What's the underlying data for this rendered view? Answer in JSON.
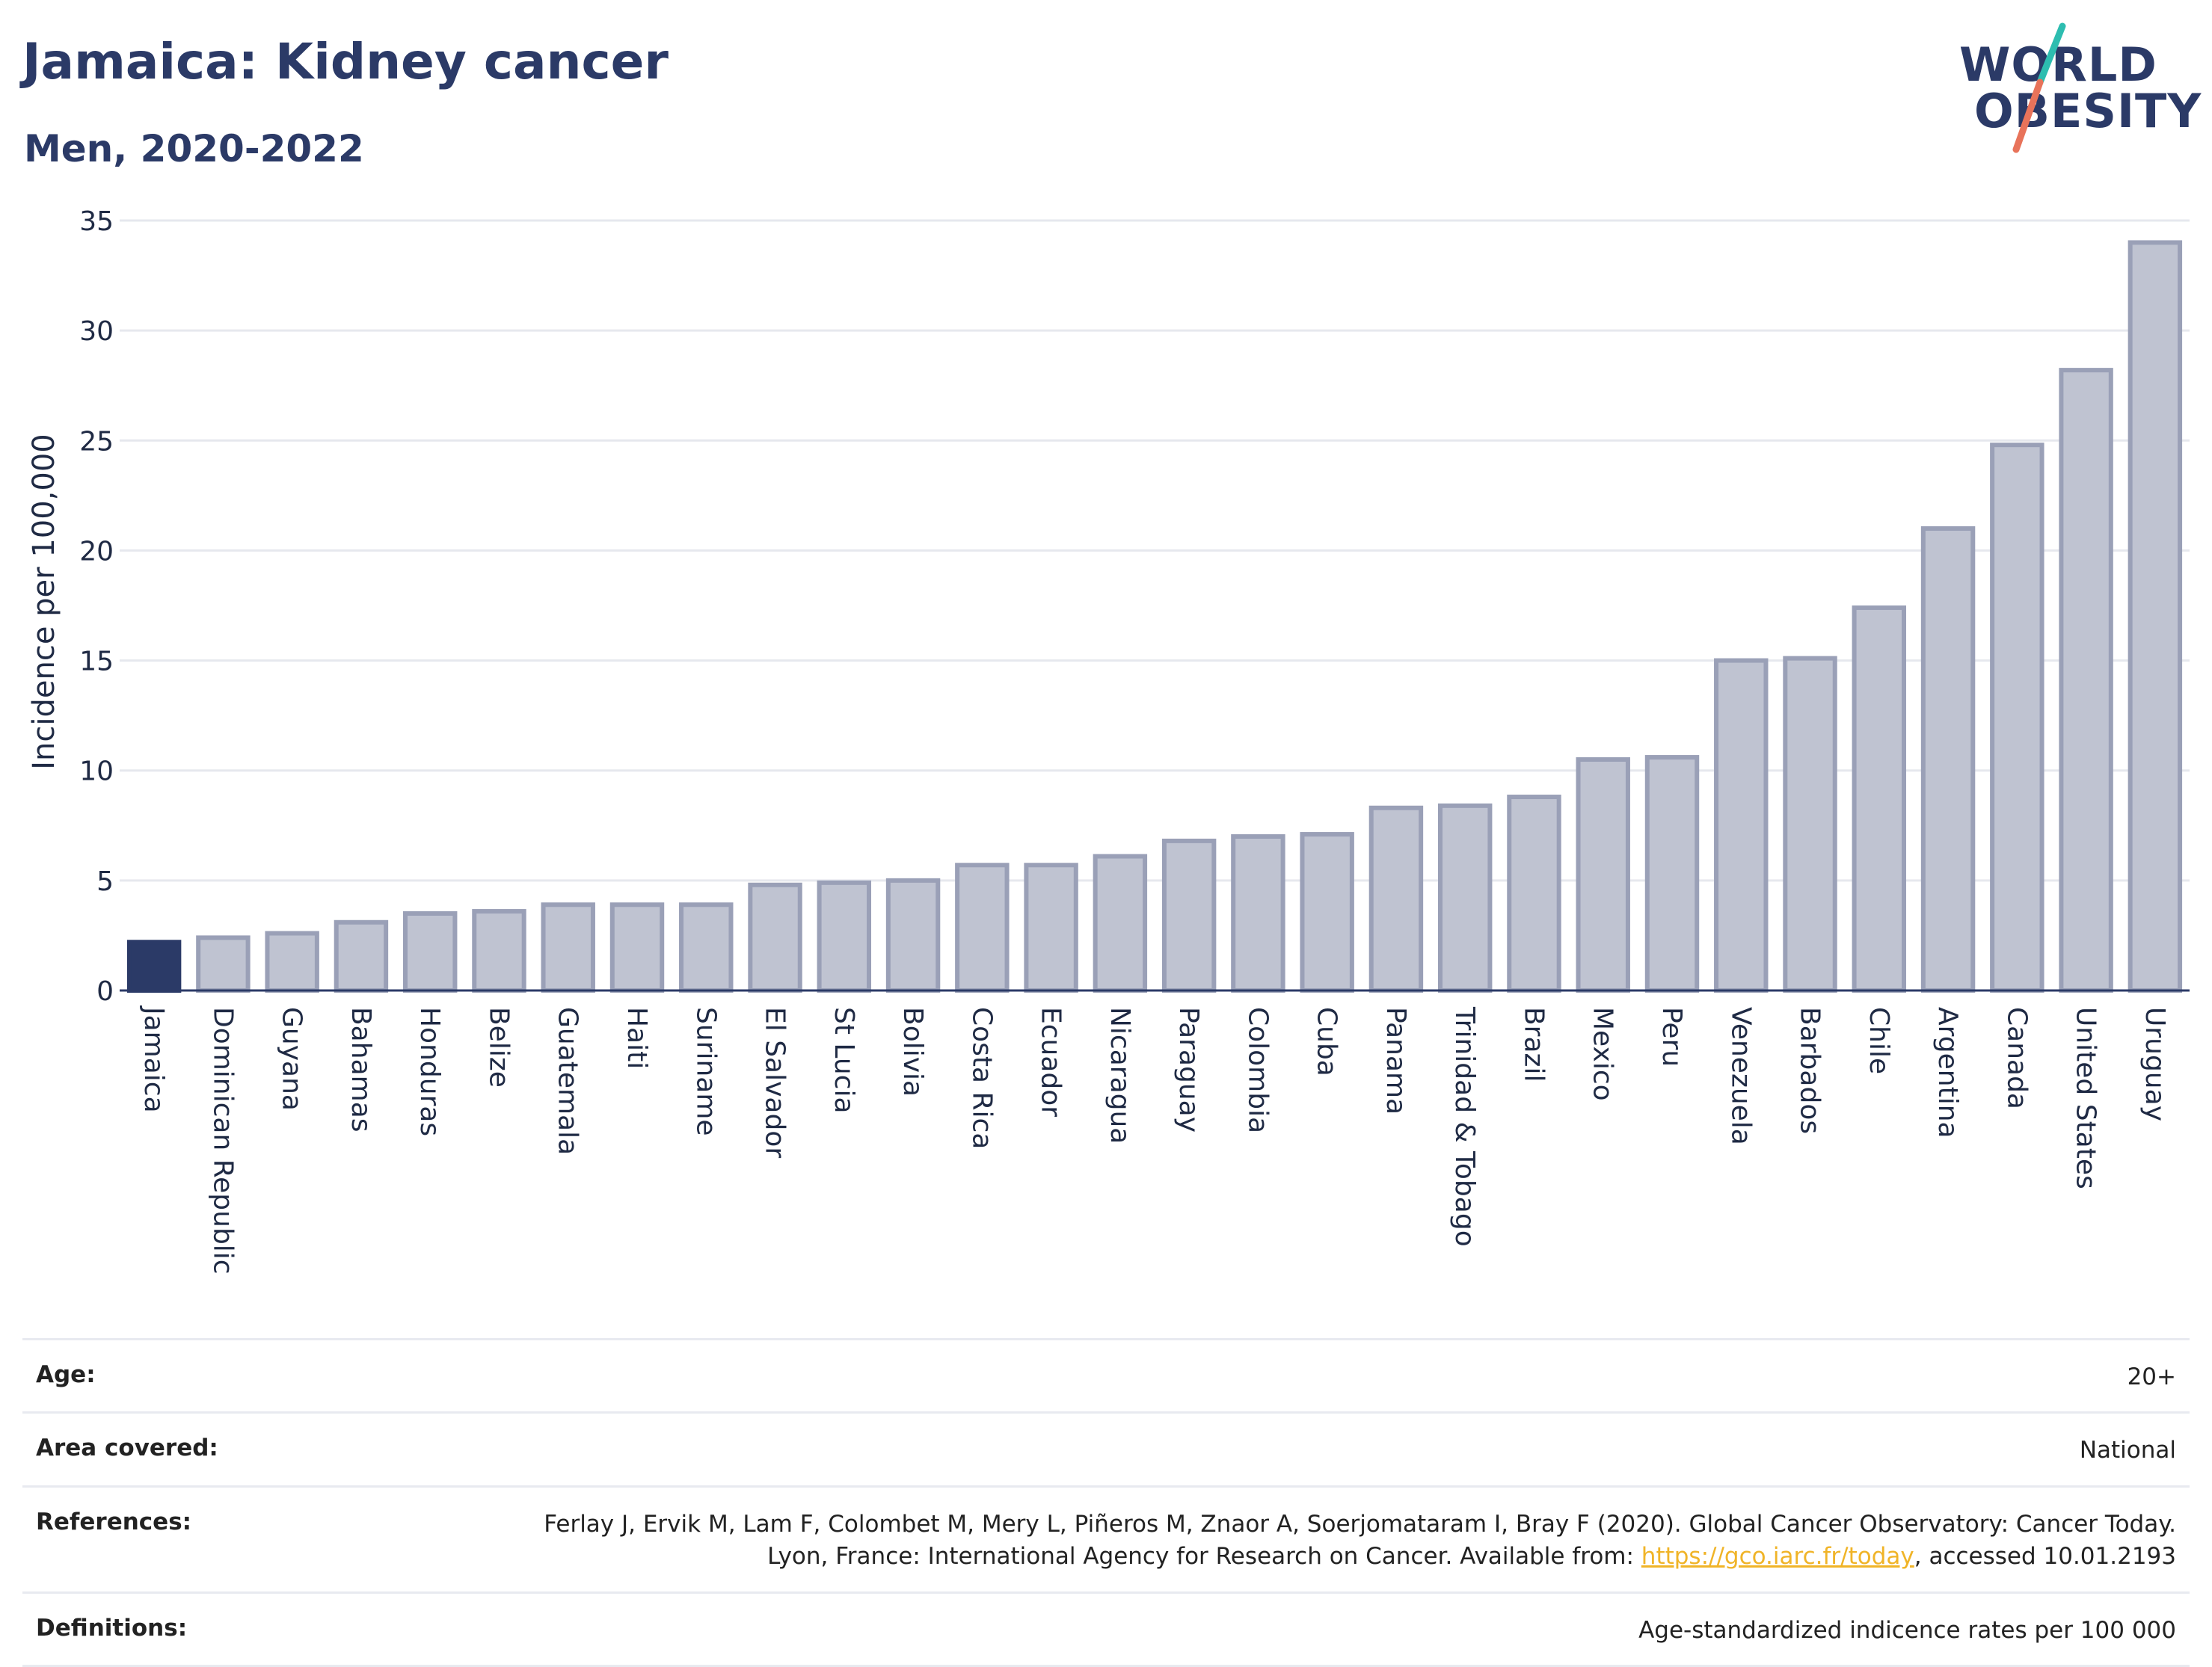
{
  "header": {
    "title": "Jamaica: Kidney cancer",
    "subtitle": "Men, 2020-2022"
  },
  "logo": {
    "line1": "WORLD",
    "line2": "OBESITY",
    "slash_colors": [
      "#2dbdb0",
      "#e8735a"
    ]
  },
  "colors": {
    "highlight": "#2b3a67",
    "bar": "#bfc3d1",
    "bar_stroke": "#9aa0b7",
    "grid": "#e6e8ee",
    "axis": "#2b3a67"
  },
  "chart_data": {
    "type": "bar",
    "categories": [
      "Jamaica",
      "Dominican Republic",
      "Guyana",
      "Bahamas",
      "Honduras",
      "Belize",
      "Guatemala",
      "Haiti",
      "Suriname",
      "El Salvador",
      "St Lucia",
      "Bolivia",
      "Costa Rica",
      "Ecuador",
      "Nicaragua",
      "Paraguay",
      "Colombia",
      "Cuba",
      "Panama",
      "Trinidad & Tobago",
      "Brazil",
      "Mexico",
      "Peru",
      "Venezuela",
      "Barbados",
      "Chile",
      "Argentina",
      "Canada",
      "United States",
      "Uruguay"
    ],
    "values": [
      2.2,
      2.4,
      2.6,
      3.1,
      3.5,
      3.6,
      3.9,
      3.9,
      3.9,
      4.8,
      4.9,
      5.0,
      5.7,
      5.7,
      6.1,
      6.8,
      7.0,
      7.1,
      8.3,
      8.4,
      8.8,
      10.5,
      10.6,
      15.0,
      15.1,
      17.4,
      21.0,
      24.8,
      28.2,
      34.0
    ],
    "highlight": "Jamaica",
    "ylabel": "Incidence per 100,000",
    "xlabel": "",
    "ylim": [
      0,
      35
    ],
    "yticks": [
      0,
      5,
      10,
      15,
      20,
      25,
      30,
      35
    ],
    "grid": true
  },
  "meta": [
    {
      "key": "Age:",
      "value": "20+"
    },
    {
      "key": "Area covered:",
      "value": "National"
    },
    {
      "key": "References:",
      "value_pre": "Ferlay J, Ervik M, Lam F, Colombet M, Mery L, Piñeros M, Znaor A, Soerjomataram I, Bray F (2020). Global Cancer Observatory: Cancer Today. Lyon, France: International Agency for Research on Cancer. Available from: ",
      "link": "https://gco.iarc.fr/today",
      "value_post": ", accessed 10.01.2193"
    },
    {
      "key": "Definitions:",
      "value": "Age-standardized indicence rates per 100 000"
    }
  ]
}
